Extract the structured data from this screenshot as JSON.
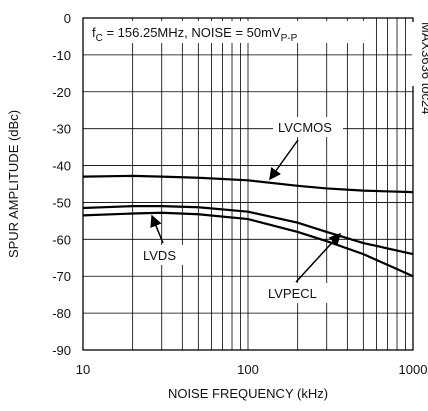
{
  "chart_data": {
    "type": "line",
    "subtitle_parts": [
      "f",
      "C",
      " = 156.25MHz, NOISE = 50mV",
      "P-P"
    ],
    "side_label": "MAX3636 toc24",
    "x_label": "NOISE FREQUENCY (kHz)",
    "y_label": "SPUR AMPLITUDE (dBc)",
    "x": [
      10,
      20,
      30,
      50,
      100,
      200,
      300,
      500,
      1000
    ],
    "series": [
      {
        "name": "LVCMOS",
        "color": "#000000",
        "values": [
          -43,
          -42.8,
          -43,
          -43.3,
          -44,
          -45.5,
          -46.2,
          -46.8,
          -47.2
        ]
      },
      {
        "name": "LVPECL",
        "color": "#000000",
        "values": [
          -51.5,
          -51,
          -51,
          -51.3,
          -52.5,
          -55.5,
          -58,
          -61,
          -64
        ]
      },
      {
        "name": "LVDS",
        "color": "#000000",
        "values": [
          -53.5,
          -53,
          -52.8,
          -53.2,
          -54.5,
          -58,
          -60.5,
          -64,
          -70
        ]
      }
    ],
    "xlim": [
      10,
      1000
    ],
    "xticks": [
      10,
      100,
      1000
    ],
    "xscale": "log",
    "ylim": [
      -90,
      0
    ],
    "yticks": [
      0,
      -10,
      -20,
      -30,
      -40,
      -50,
      -60,
      -70,
      -80,
      -90
    ],
    "grid": true
  }
}
